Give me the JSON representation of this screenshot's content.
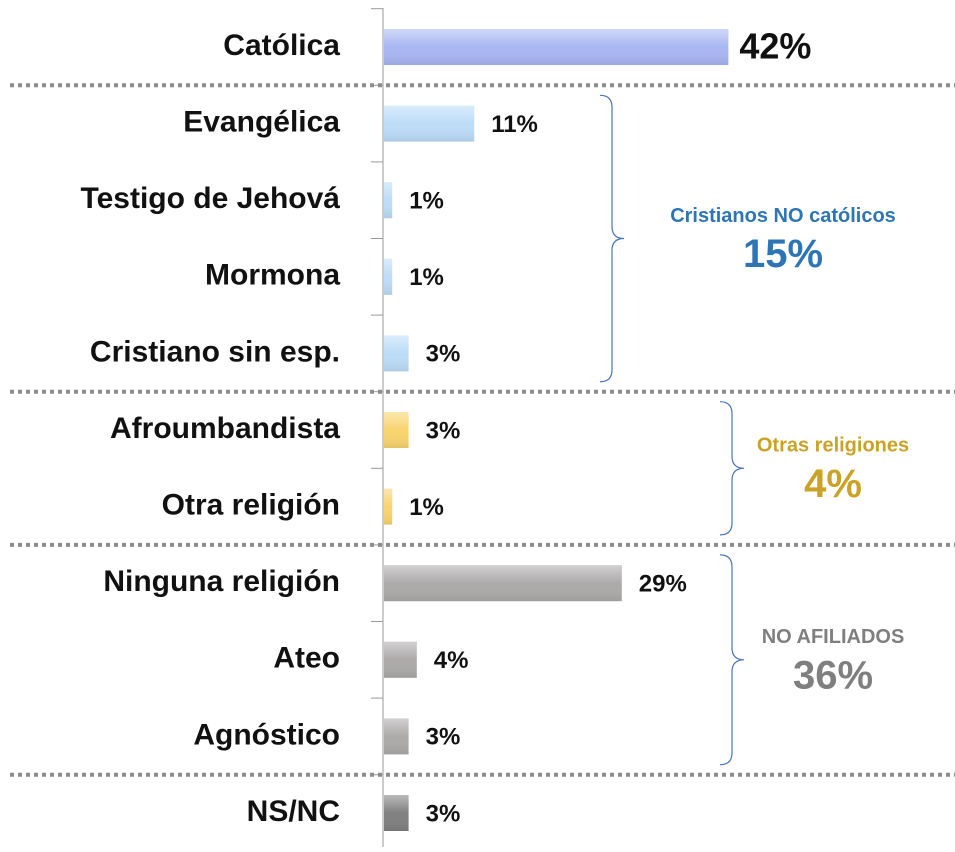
{
  "chart_data": {
    "type": "bar",
    "orientation": "horizontal",
    "categories": [
      "Católica",
      "Evangélica",
      "Testigo de Jehová",
      "Mormona",
      "Cristiano sin esp.",
      "Afroumbandista",
      "Otra religión",
      "Ninguna religión",
      "Ateo",
      "Agnóstico",
      "NS/NC"
    ],
    "values": [
      42,
      11,
      1,
      1,
      3,
      3,
      1,
      29,
      4,
      3,
      3
    ],
    "value_labels": [
      "42%",
      "11%",
      "1%",
      "1%",
      "3%",
      "3%",
      "1%",
      "29%",
      "4%",
      "3%",
      "3%"
    ],
    "colors": [
      "#a9b7f2",
      "#bcdcf8",
      "#bcdcf8",
      "#bcdcf8",
      "#bcdcf8",
      "#f9d46e",
      "#f9d46e",
      "#adaaaa",
      "#adaaaa",
      "#adaaaa",
      "#808080"
    ],
    "annotations": [
      {
        "text": "Cristianos NO católicos",
        "total": "15%",
        "color": "#2e75b6"
      },
      {
        "text": "Otras religiones",
        "total": "4%",
        "color": "#c9a227"
      },
      {
        "text": "NO AFILIADOS",
        "total": "36%",
        "color": "#7f7f7f"
      }
    ]
  }
}
